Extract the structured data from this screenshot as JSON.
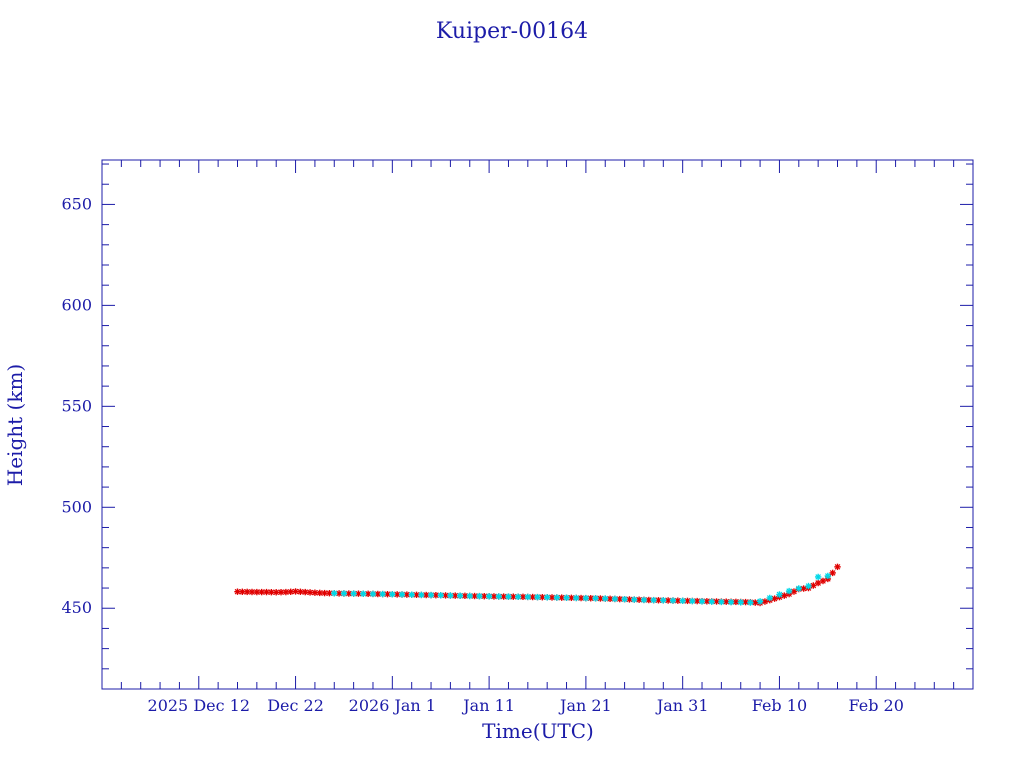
{
  "chart_data": {
    "type": "scatter",
    "title": "Kuiper-00164",
    "xlabel": "Time(UTC)",
    "ylabel": "Height (km)",
    "xlim": [
      "2025-12-02",
      "2026-03-02"
    ],
    "ylim": [
      410,
      672
    ],
    "y_ticks": [
      450,
      500,
      550,
      600,
      650
    ],
    "x_ticks": [
      {
        "date": "2025-12-12",
        "label": "2025 Dec 12"
      },
      {
        "date": "2025-12-22",
        "label": "Dec 22"
      },
      {
        "date": "2026-01-01",
        "label": "2026 Jan  1"
      },
      {
        "date": "2026-01-11",
        "label": "Jan 11"
      },
      {
        "date": "2026-01-21",
        "label": "Jan 21"
      },
      {
        "date": "2026-01-31",
        "label": "Jan 31"
      },
      {
        "date": "2026-02-10",
        "label": "Feb 10"
      },
      {
        "date": "2026-02-20",
        "label": "Feb 20"
      }
    ],
    "grid": false,
    "colors": {
      "axis": "#1c1ca8",
      "series_a": "#e00000",
      "series_b": "#00d8e8"
    },
    "series": [
      {
        "marker": "star",
        "color": "#e00000",
        "x": [
          "2025-12-16",
          "2025-12-17",
          "2025-12-18",
          "2025-12-19",
          "2025-12-20",
          "2025-12-21",
          "2025-12-22",
          "2025-12-23",
          "2025-12-24",
          "2025-12-25",
          "2025-12-27",
          "2025-12-29",
          "2025-12-31",
          "2026-01-02",
          "2026-01-04",
          "2026-01-06",
          "2026-01-08",
          "2026-01-10",
          "2026-01-12",
          "2026-01-14",
          "2026-01-16",
          "2026-01-18",
          "2026-01-20",
          "2026-01-22",
          "2026-01-24",
          "2026-01-26",
          "2026-01-28",
          "2026-01-30",
          "2026-02-01",
          "2026-02-03",
          "2026-02-05",
          "2026-02-07",
          "2026-02-08",
          "2026-02-09",
          "2026-02-10",
          "2026-02-11",
          "2026-02-12",
          "2026-02-13",
          "2026-02-14",
          "2026-02-15",
          "2026-02-16"
        ],
        "y": [
          458.2,
          458.1,
          458.0,
          458.0,
          457.9,
          458.0,
          458.3,
          458.0,
          457.7,
          457.5,
          457.3,
          457.2,
          457.0,
          456.8,
          456.6,
          456.4,
          456.2,
          456.0,
          455.8,
          455.7,
          455.5,
          455.3,
          455.1,
          454.9,
          454.6,
          454.3,
          454.0,
          453.8,
          453.6,
          453.4,
          453.2,
          453.0,
          452.6,
          454.0,
          455.5,
          457.0,
          459.5,
          460.0,
          462.5,
          464.5,
          470.5
        ]
      },
      {
        "marker": "star",
        "color": "#00d8e8",
        "x": [
          "2025-12-26",
          "2025-12-30",
          "2026-01-03",
          "2026-01-07",
          "2026-01-11",
          "2026-01-15",
          "2026-01-19",
          "2026-01-23",
          "2026-01-27",
          "2026-01-31",
          "2026-02-04",
          "2026-02-07",
          "2026-02-08",
          "2026-02-11",
          "2026-02-12",
          "2026-02-13",
          "2026-02-14",
          "2026-02-15"
        ],
        "y": [
          457.4,
          457.1,
          456.7,
          456.3,
          455.9,
          455.6,
          455.2,
          454.8,
          454.1,
          453.7,
          453.1,
          452.8,
          453.4,
          458.5,
          459.8,
          461.0,
          465.5,
          466.0
        ]
      }
    ]
  }
}
